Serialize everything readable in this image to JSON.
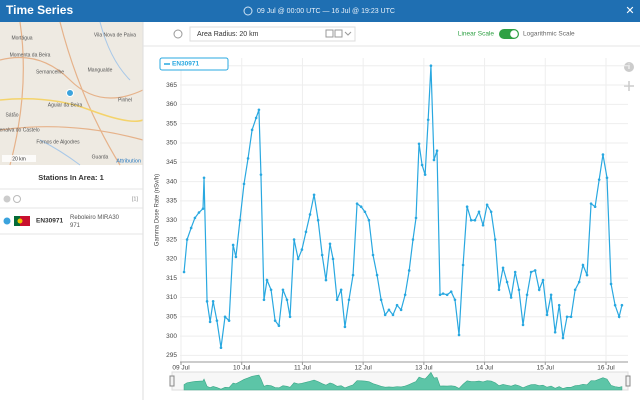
{
  "header": {
    "title": "Time Series",
    "range": "09 Jul @ 00:00 UTC  —  16 Jul @ 19:23 UTC",
    "close": "✕"
  },
  "map": {
    "labels": [
      "Mortágua",
      "Momenta da Beira",
      "Sernancelhe",
      "Aguiar da Beira",
      "Penalva do Castelo",
      "Sátão",
      "Fornos de Algodres",
      "Mangualde",
      "Guarda",
      "Pinhel",
      "Vila Nova de Paiva"
    ],
    "scale": "20 km",
    "attribution": "Attribution"
  },
  "stations": {
    "title": "Stations In Area: 1",
    "count": "[1]",
    "id": "EN30971",
    "name": "Reboleiro MIRA30 971"
  },
  "toolbar": {
    "radius": "Area Radius: 20 km",
    "linear": "Linear Scale",
    "log": "Logarithmic Scale"
  },
  "chart_data": {
    "type": "line",
    "ylabel": "Gamma Dose Rate (nSv/h)",
    "xlim": [
      -0.4,
      176.7
    ],
    "ylim": [
      293.3,
      372
    ],
    "xticks": [
      {
        "value": 0,
        "label": "09 Jul"
      },
      {
        "value": 24,
        "label": "10 Jul"
      },
      {
        "value": 48,
        "label": "11 Jul"
      },
      {
        "value": 72,
        "label": "12 Jul"
      },
      {
        "value": 96,
        "label": "13 Jul"
      },
      {
        "value": 120,
        "label": "14 Jul"
      },
      {
        "value": 144,
        "label": "15 Jul"
      },
      {
        "value": 168,
        "label": "16 Jul"
      }
    ],
    "yticks": [
      295,
      300,
      305,
      310,
      315,
      320,
      325,
      330,
      335,
      340,
      345,
      350,
      355,
      360,
      365,
      370
    ],
    "grid": true,
    "series": [
      {
        "name": "EN30971",
        "color": "#29a8e0",
        "x": [
          1.2,
          2.4,
          4.0,
          5.5,
          7.1,
          8.7,
          9.1,
          10.3,
          11.5,
          12.7,
          14.2,
          15.8,
          17.4,
          19.0,
          20.6,
          21.7,
          23.3,
          24.9,
          26.5,
          28.1,
          29.7,
          30.8,
          31.6,
          32.8,
          34.0,
          35.6,
          37.2,
          38.7,
          40.3,
          41.9,
          43.1,
          44.7,
          46.3,
          47.8,
          49.4,
          51.0,
          52.6,
          54.2,
          55.8,
          57.3,
          58.9,
          60.1,
          61.7,
          63.3,
          64.8,
          66.4,
          68.0,
          69.6,
          71.2,
          72.7,
          74.3,
          75.9,
          77.5,
          79.1,
          80.7,
          82.2,
          83.8,
          85.4,
          87.0,
          88.6,
          90.2,
          91.7,
          92.9,
          94.1,
          95.3,
          96.5,
          97.7,
          98.8,
          100.0,
          101.2,
          102.4,
          103.6,
          105.2,
          106.8,
          108.3,
          109.9,
          111.5,
          113.1,
          114.7,
          116.2,
          117.8,
          119.4,
          121.0,
          122.6,
          124.2,
          125.7,
          127.3,
          128.9,
          130.5,
          132.1,
          133.6,
          135.2,
          136.8,
          138.4,
          140.0,
          141.6,
          143.1,
          144.7,
          146.3,
          147.9,
          149.5,
          151.0,
          152.6,
          154.2,
          155.8,
          157.4,
          158.9,
          160.5,
          162.1,
          163.7,
          165.3,
          166.8,
          168.4,
          170.0,
          171.6,
          173.2,
          174.3
        ],
        "values": [
          316.6,
          325,
          328,
          330.6,
          332,
          333,
          341,
          309,
          303.7,
          309,
          304,
          297,
          305,
          304,
          323.6,
          320.5,
          330,
          339.4,
          346,
          353.4,
          356.5,
          358.6,
          341.8,
          309.4,
          314.5,
          312,
          304,
          302.7,
          312,
          309.4,
          305,
          325,
          320,
          322.4,
          327,
          331.5,
          336.6,
          330,
          321,
          314.5,
          323.9,
          320,
          309.4,
          312,
          302.4,
          309.4,
          315.8,
          334.3,
          333.5,
          332.2,
          330,
          321,
          315.8,
          309.4,
          305.5,
          306.8,
          305.5,
          308,
          306.8,
          310.7,
          317,
          325,
          330.6,
          349.8,
          344.3,
          341.8,
          356,
          370,
          345.6,
          348,
          310.7,
          311,
          310.7,
          311.5,
          309.4,
          300.3,
          318.4,
          333.5,
          330,
          330,
          332.2,
          328.7,
          334,
          332.2,
          325,
          312,
          317.7,
          314,
          310,
          316.6,
          312,
          302.9,
          310.7,
          316.6,
          317,
          312,
          314.5,
          305.5,
          310.7,
          301,
          308,
          299.5,
          305,
          305,
          312,
          314,
          318.4,
          315.8,
          334.3,
          333.5,
          340.5,
          347,
          341,
          313.5,
          308,
          305,
          308
        ]
      }
    ]
  }
}
